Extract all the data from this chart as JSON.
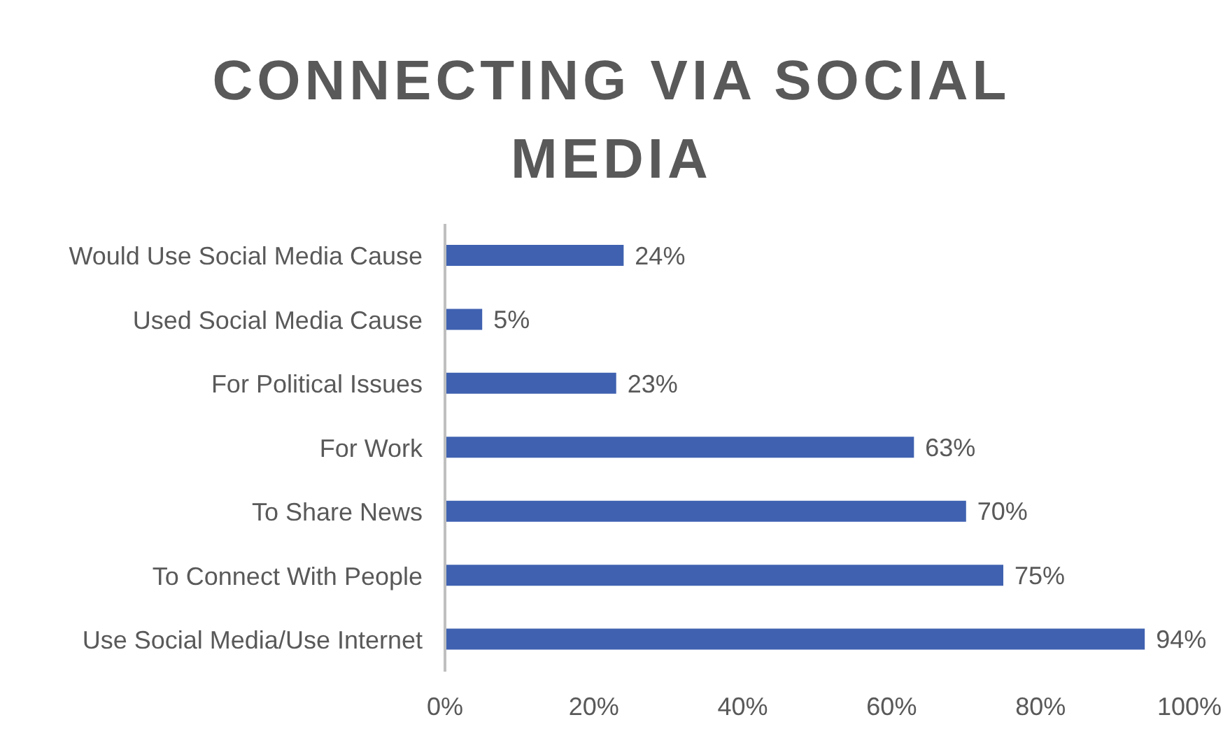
{
  "chart_data": {
    "type": "bar",
    "orientation": "horizontal",
    "title": "CONNECTING VIA SOCIAL MEDIA",
    "categories": [
      "Would Use Social Media Cause",
      "Used Social Media Cause",
      "For Political Issues",
      "For Work",
      "To Share News",
      "To Connect With People",
      "Use Social Media/Use Internet"
    ],
    "values": [
      24,
      5,
      23,
      63,
      70,
      75,
      94
    ],
    "value_labels": [
      "24%",
      "5%",
      "23%",
      "63%",
      "70%",
      "75%",
      "94%"
    ],
    "color": "#3f61b0",
    "xlim": [
      0,
      100
    ],
    "xticks": [
      {
        "value": 0,
        "label": "0%"
      },
      {
        "value": 20,
        "label": "20%"
      },
      {
        "value": 40,
        "label": "40%"
      },
      {
        "value": 60,
        "label": "60%"
      },
      {
        "value": 80,
        "label": "80%"
      },
      {
        "value": 100,
        "label": "100%"
      }
    ],
    "grid": false,
    "legend": false
  }
}
